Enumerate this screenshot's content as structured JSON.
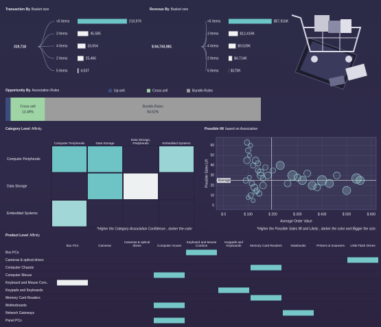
{
  "transactions": {
    "title": "Transaction By",
    "subtitle": "Basket size",
    "total": "319,718",
    "categories": [
      ">5 Items",
      "3 Items",
      "4 Items",
      "2 Items",
      "5 Items"
    ],
    "values": [
      210976,
      45585,
      33654,
      25466,
      4037
    ],
    "value_labels": [
      "210,976",
      "45,585",
      "33,654",
      "25,466",
      "4,037"
    ],
    "colors": [
      "#6cc5c6",
      "#f2f2f2",
      "#f2f2f2",
      "#f2f2f2",
      "#f2f2f2"
    ],
    "xlim": [
      0,
      220000
    ]
  },
  "revenue": {
    "title": "Revenue By",
    "subtitle": "Basket size",
    "total": "$ 84,743,981",
    "categories": [
      ">5 Items",
      "3 Items",
      "4 Items",
      "2 Items",
      "5 Items"
    ],
    "values": [
      57916,
      12416,
      9528,
      4714,
      170
    ],
    "value_labels": [
      "$57,916K",
      "$12,416K",
      "$9,528K",
      "$4,714K",
      "$170K"
    ],
    "colors": [
      "#6cc5c6",
      "#f2f2f2",
      "#f2f2f2",
      "#f2f2f2",
      "#f2f2f2"
    ],
    "xlim": [
      0,
      60000
    ]
  },
  "opportunity": {
    "type": "stacked-bar",
    "title": "Opportunity By",
    "subtitle": "Association Rules",
    "series": [
      {
        "name": "Up-sell",
        "color": "#3d4b7e",
        "values": [
          1.99
        ]
      },
      {
        "name": "Cross-sell",
        "color": "#9fd4a4",
        "values": [
          13.49
        ],
        "value_labels": [
          "13.49%"
        ]
      },
      {
        "name": "Bundle-Rules",
        "color": "#9c9c9c",
        "values": [
          84.52
        ],
        "value_labels": [
          "84.52%"
        ]
      }
    ],
    "xlim": [
      0,
      100
    ]
  },
  "category_affinity": {
    "type": "heatmap",
    "title": "Category Level",
    "subtitle": "Affinity",
    "columns": [
      "Computer Peripherals",
      "Data Storage",
      "Data Storage, Peripherals",
      "Embedded Systems"
    ],
    "rows": [
      "Computer Peripherals",
      "Data Storage",
      "Embedded Systems"
    ],
    "values": [
      [
        0.9,
        0.9,
        null,
        0.6
      ],
      [
        null,
        0.9,
        0.05,
        null
      ],
      [
        0.55,
        null,
        null,
        null
      ]
    ],
    "note": "*Higher the Category Association Confidence , darker the color"
  },
  "possible_lift": {
    "type": "scatter",
    "title": "Possible lift",
    "subtitle": "based on Association",
    "x": [
      95,
      100,
      110,
      120,
      130,
      140,
      150,
      90,
      105,
      115,
      125,
      135,
      145,
      160,
      170,
      100,
      110,
      120,
      130,
      95,
      105,
      140,
      150,
      160,
      180,
      200,
      230,
      260,
      280,
      300,
      320,
      340,
      360,
      380,
      400,
      430,
      460,
      500,
      540,
      555
    ],
    "y": [
      63,
      55,
      60,
      40,
      45,
      35,
      30,
      25,
      28,
      22,
      18,
      15,
      12,
      20,
      38,
      8,
      10,
      5,
      14,
      45,
      50,
      42,
      33,
      27,
      30,
      35,
      40,
      22,
      30,
      28,
      25,
      32,
      20,
      18,
      25,
      22,
      30,
      15,
      27,
      25
    ],
    "size": [
      4,
      4,
      3,
      4,
      5,
      4,
      5,
      4,
      3,
      4,
      5,
      4,
      4,
      5,
      4,
      3,
      4,
      3,
      4,
      5,
      3,
      4,
      5,
      4,
      5,
      4,
      6,
      5,
      7,
      5,
      6,
      5,
      6,
      5,
      7,
      6,
      5,
      6,
      7,
      6
    ],
    "color": "#9fd8d8",
    "xlim": [
      -30,
      620
    ],
    "ylim": [
      -4,
      68
    ],
    "xticks": [
      {
        "value": 0,
        "label": "$ 0"
      },
      {
        "value": 100,
        "label": "$ 100"
      },
      {
        "value": 200,
        "label": "$ 200"
      },
      {
        "value": 300,
        "label": "$ 300"
      },
      {
        "value": 400,
        "label": "$ 400"
      },
      {
        "value": 500,
        "label": "$ 500"
      },
      {
        "value": 600,
        "label": "$ 600"
      }
    ],
    "yticks": [
      0,
      10,
      20,
      30,
      40,
      50,
      60
    ],
    "grid": true,
    "xlabel": "Average Order Value",
    "ylabel": "Possible Sales Lift",
    "average": {
      "label": "Average",
      "x": 195,
      "y": 25
    },
    "note": "*Higher the Possible Sales lift and Likely , darker the color and Bigger the size."
  },
  "product_affinity": {
    "type": "heatmap",
    "title": "Product Level",
    "subtitle": "Affinity",
    "columns": [
      "Box PCs",
      "Cameras",
      "Cameras & optical drives",
      "Computer mouse",
      "Keyboard and Mouse Combos",
      "Keypads and Keyboards",
      "Memory Card Readers",
      "Notebooks",
      "Printers & Scanners",
      "USB Flash Drives"
    ],
    "rows": [
      "Box PCs",
      "Cameras & optical drives",
      "Computer Chassis",
      "Computer Mouse",
      "Keyboard and Mouse Com..",
      "Keypads and Keyboards",
      "Memory Card Readers",
      "Motherboards",
      "Network Gateways",
      "Panel PCs"
    ],
    "values": [
      [
        null,
        null,
        null,
        null,
        0.85,
        null,
        null,
        null,
        null,
        null
      ],
      [
        null,
        null,
        null,
        null,
        null,
        null,
        null,
        null,
        null,
        0.85
      ],
      [
        null,
        null,
        null,
        null,
        null,
        null,
        0.85,
        null,
        null,
        null
      ],
      [
        null,
        null,
        null,
        0.85,
        null,
        null,
        null,
        null,
        null,
        null
      ],
      [
        0.05,
        null,
        null,
        null,
        null,
        null,
        null,
        null,
        null,
        null
      ],
      [
        null,
        null,
        null,
        null,
        null,
        0.85,
        null,
        null,
        null,
        null
      ],
      [
        null,
        null,
        null,
        null,
        null,
        null,
        0.85,
        null,
        null,
        null
      ],
      [
        null,
        null,
        null,
        0.85,
        null,
        null,
        null,
        null,
        null,
        null
      ],
      [
        null,
        null,
        null,
        null,
        null,
        null,
        null,
        0.85,
        null,
        null
      ],
      [
        null,
        null,
        null,
        0.85,
        null,
        null,
        null,
        null,
        null,
        null
      ]
    ]
  }
}
